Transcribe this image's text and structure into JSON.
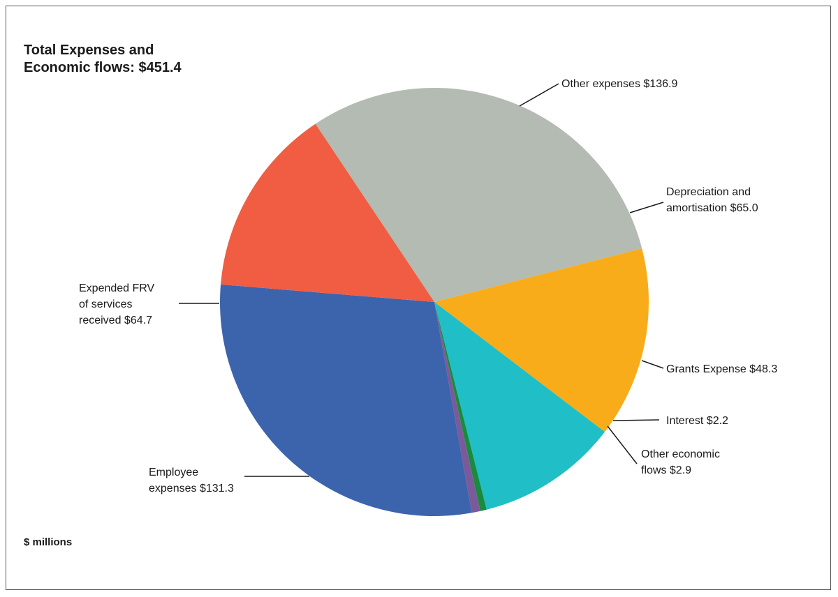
{
  "chart_data": {
    "type": "pie",
    "title_lines": [
      "Total Expenses and",
      "Economic flows: $451.4"
    ],
    "units": "$ millions",
    "slices": [
      {
        "name": "Other expenses",
        "value": 136.9,
        "label_lines": [
          "Other expenses $136.9"
        ],
        "color": "#b3bbb3"
      },
      {
        "name": "Depreciation and amortisation",
        "value": 65.0,
        "label_lines": [
          "Depreciation and",
          "amortisation $65.0"
        ],
        "color": "#f9ac1a"
      },
      {
        "name": "Grants Expense",
        "value": 48.3,
        "label_lines": [
          "Grants Expense $48.3"
        ],
        "color": "#20bec6"
      },
      {
        "name": "Interest",
        "value": 2.2,
        "label_lines": [
          "Interest $2.2"
        ],
        "color": "#1a8a3e"
      },
      {
        "name": "Other economic flows",
        "value": 2.9,
        "label_lines": [
          "Other economic",
          "flows $2.9"
        ],
        "color": "#7a5a9a"
      },
      {
        "name": "Employee expenses",
        "value": 131.3,
        "label_lines": [
          "Employee",
          "expenses $131.3"
        ],
        "color": "#3c64ac"
      },
      {
        "name": "Expended FRV of services received",
        "value": 64.7,
        "label_lines": [
          "Expended FRV",
          "of services",
          "received $64.7"
        ],
        "color": "#f05d42"
      }
    ]
  }
}
